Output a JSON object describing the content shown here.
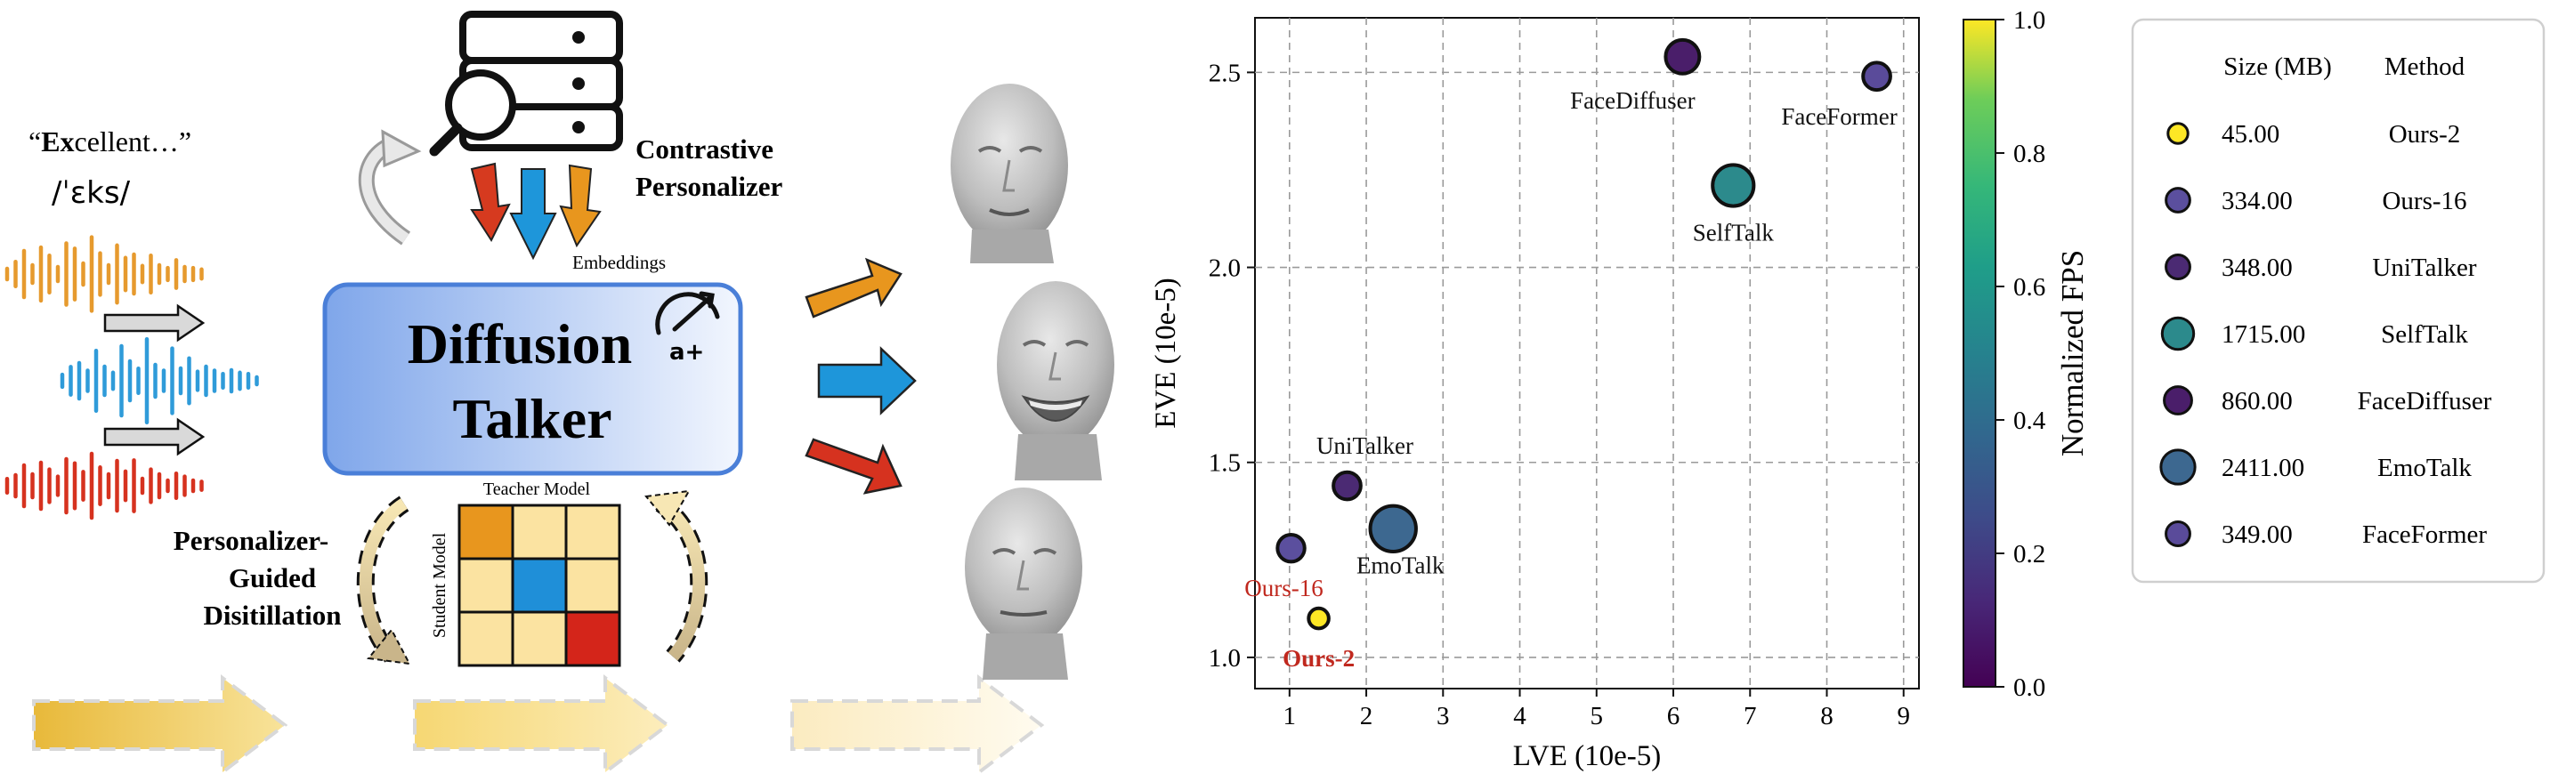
{
  "left": {
    "quote_prefix": "“",
    "quote_bold": "Ex",
    "quote_rest": "cellent…”",
    "phonetic": "/ˈɛks/",
    "contrastive_label_1": "Contrastive",
    "contrastive_label_2": "Personalizer",
    "embeddings_label": "Embeddings",
    "talker_line_1": "Diffusion",
    "talker_line_2": "Talker",
    "accel_label": "a+",
    "teacher_label": "Teacher Model",
    "student_label": "Student Model",
    "distill_label_1": "Personalizer-",
    "distill_label_2": "Guided",
    "distill_label_3": "Disitillation",
    "colors": {
      "wave_orange": "#E69A2E",
      "wave_blue": "#2F9BD9",
      "wave_red": "#D6321F",
      "talker_fill_left": "#7FA6EA",
      "talker_border": "#4A7FD8",
      "grid_orange": "#E8961E",
      "grid_blue": "#1F8FD8",
      "grid_red": "#D4251A",
      "grid_cream": "#FBE3A1"
    },
    "teacher_grid": [
      [
        "orange",
        "cream",
        "cream"
      ],
      [
        "cream",
        "blue",
        "cream"
      ],
      [
        "cream",
        "cream",
        "red"
      ]
    ]
  },
  "chart_data": {
    "type": "scatter",
    "xlabel": "LVE (10e-5)",
    "ylabel": "EVE (10e-5)",
    "xlim": [
      0.55,
      9.2
    ],
    "ylim": [
      0.92,
      2.64
    ],
    "xticks": [
      1,
      2,
      3,
      4,
      5,
      6,
      7,
      8,
      9
    ],
    "yticks": [
      1.0,
      1.5,
      2.0,
      2.5
    ],
    "ytick_labels": [
      "1.0",
      "1.5",
      "2.0",
      "2.5"
    ],
    "grid": true,
    "colorbar": {
      "label": "Normalized FPS",
      "range": [
        0.0,
        1.0
      ],
      "ticks": [
        "0.0",
        "0.2",
        "0.4",
        "0.6",
        "0.8",
        "1.0"
      ],
      "colormap": "viridis"
    },
    "points": [
      {
        "method": "Ours-2",
        "lve": 1.38,
        "eve": 1.1,
        "size_mb": "45.00",
        "fps": 0.97,
        "color": "#FDE725",
        "label": "Ours-2",
        "label_color": "#C0281E",
        "label_bold": true
      },
      {
        "method": "Ours-16",
        "lve": 1.02,
        "eve": 1.28,
        "size_mb": "334.00",
        "fps": 0.14,
        "color": "#5B4F9E",
        "label": "Ours-16",
        "label_color": "#C0281E",
        "label_bold": false
      },
      {
        "method": "UniTalker",
        "lve": 1.75,
        "eve": 1.44,
        "size_mb": "348.00",
        "fps": 0.04,
        "color": "#4B2A73",
        "label": "UniTalker",
        "label_color": "#111111",
        "label_bold": false
      },
      {
        "method": "SelfTalk",
        "lve": 6.78,
        "eve": 2.21,
        "size_mb": "1715.00",
        "fps": 0.43,
        "color": "#2C8A8C",
        "label": "SelfTalk",
        "label_color": "#111111",
        "label_bold": false
      },
      {
        "method": "FaceDiffuser",
        "lve": 6.12,
        "eve": 2.54,
        "size_mb": "860.00",
        "fps": 0.01,
        "color": "#4A1E6A",
        "label": "FaceDiffuser",
        "label_color": "#111111",
        "label_bold": false
      },
      {
        "method": "EmoTalk",
        "lve": 2.35,
        "eve": 1.33,
        "size_mb": "2411.00",
        "fps": 0.3,
        "color": "#3D6890",
        "label": "EmoTalk",
        "label_color": "#111111",
        "label_bold": false
      },
      {
        "method": "FaceFormer",
        "lve": 8.65,
        "eve": 2.49,
        "size_mb": "349.00",
        "fps": 0.13,
        "color": "#5A4B9A",
        "label": "FaceFormer",
        "label_color": "#111111",
        "label_bold": false
      }
    ]
  },
  "legend": {
    "col_size": "Size (MB)",
    "col_method": "Method"
  }
}
